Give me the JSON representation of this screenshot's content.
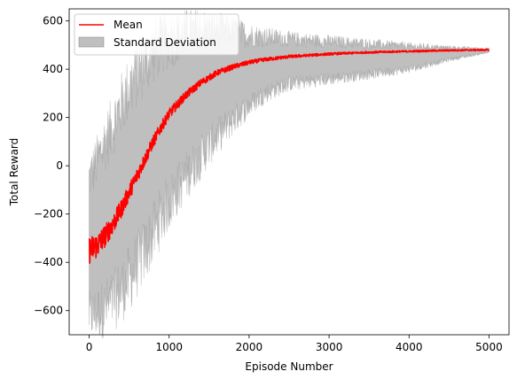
{
  "chart_data": {
    "type": "line",
    "xlabel": "Episode Number",
    "ylabel": "Total Reward",
    "xlim": [
      -250,
      5250
    ],
    "ylim": [
      -700,
      650
    ],
    "x_ticks": [
      0,
      1000,
      2000,
      3000,
      4000,
      5000
    ],
    "y_ticks": [
      -600,
      -400,
      -200,
      0,
      200,
      400,
      600
    ],
    "x_tick_labels": [
      "0",
      "1000",
      "2000",
      "3000",
      "4000",
      "5000"
    ],
    "y_tick_labels": [
      "−600",
      "−400",
      "−200",
      "0",
      "200",
      "400",
      "600"
    ],
    "grid": false,
    "legend_position": "top-left",
    "colors": {
      "mean": "#ff0000",
      "band": "#808080"
    },
    "series": [
      {
        "name": "Mean",
        "kind": "line",
        "x": [
          0,
          100,
          200,
          300,
          400,
          500,
          600,
          700,
          800,
          900,
          1000,
          1200,
          1400,
          1600,
          1800,
          2000,
          2200,
          2500,
          3000,
          3500,
          4000,
          4500,
          5000
        ],
        "y": [
          -350,
          -330,
          -290,
          -240,
          -180,
          -110,
          -40,
          30,
          100,
          160,
          215,
          290,
          345,
          385,
          410,
          428,
          440,
          452,
          463,
          470,
          474,
          478,
          480
        ]
      },
      {
        "name": "Standard Deviation",
        "kind": "band",
        "x": [
          0,
          100,
          200,
          300,
          400,
          500,
          600,
          700,
          800,
          900,
          1000,
          1200,
          1400,
          1600,
          1800,
          2000,
          2200,
          2500,
          3000,
          3500,
          4000,
          4500,
          5000
        ],
        "lower": [
          -620,
          -610,
          -590,
          -560,
          -520,
          -470,
          -410,
          -350,
          -280,
          -210,
          -150,
          -50,
          40,
          120,
          190,
          250,
          300,
          340,
          360,
          380,
          400,
          440,
          470
        ],
        "upper": [
          -50,
          20,
          100,
          170,
          250,
          320,
          380,
          430,
          470,
          500,
          520,
          545,
          560,
          560,
          555,
          540,
          535,
          525,
          515,
          505,
          495,
          490,
          485
        ]
      }
    ]
  }
}
